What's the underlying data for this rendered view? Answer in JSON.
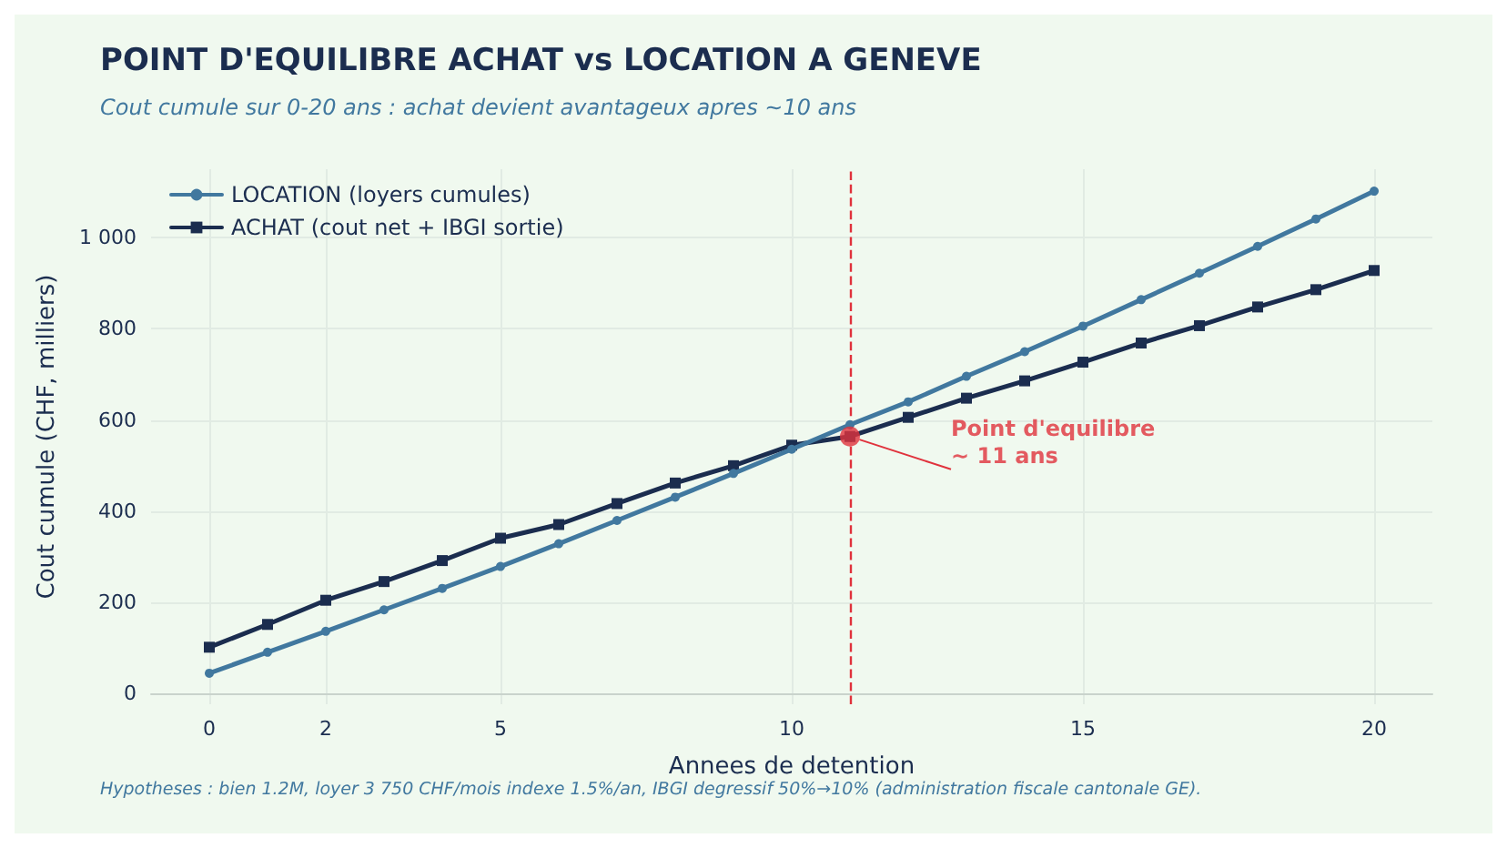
{
  "chart_data": {
    "type": "line",
    "title": "POINT D'EQUILIBRE ACHAT vs LOCATION A GENEVE",
    "subtitle": "Cout cumule sur 0-20 ans : achat devient avantageux apres ~10 ans",
    "xlabel": "Annees de detention",
    "ylabel": "Cout cumule (CHF, milliers)",
    "x": [
      0,
      1,
      2,
      3,
      4,
      5,
      6,
      7,
      8,
      9,
      10,
      11,
      12,
      13,
      14,
      15,
      16,
      17,
      18,
      19,
      20
    ],
    "series": [
      {
        "name": "LOCATION (loyers cumules)",
        "color": "#41789f",
        "marker": "circle",
        "values": [
          45,
          91,
          137,
          184,
          231,
          279,
          329,
          380,
          431,
          483,
          536,
          590,
          640,
          696,
          750,
          806,
          864,
          922,
          981,
          1041,
          1102
        ]
      },
      {
        "name": "ACHAT (cout net + IBGI sortie)",
        "color": "#1b2d4f",
        "marker": "square",
        "values": [
          102,
          152,
          205,
          246,
          292,
          341,
          371,
          417,
          462,
          500,
          545,
          564,
          606,
          648,
          686,
          727,
          769,
          807,
          848,
          886,
          928
        ]
      }
    ],
    "xlim": [
      -1,
      21
    ],
    "xticks": [
      0,
      2,
      5,
      10,
      15,
      20
    ],
    "ylim": [
      -23,
      1150
    ],
    "yticks": [
      0,
      200,
      400,
      600,
      800,
      {
        "value": 1000,
        "label": "1 000"
      }
    ],
    "ref_lines": [
      {
        "axis": "x",
        "value": 11,
        "label": null,
        "color": "#e0323c",
        "line_style": "dashed"
      }
    ],
    "annotations": [
      {
        "text": "Point d'equilibre\n~ 11 ans",
        "x": 11,
        "y": 564
      },
      "Hypotheses : bien 1.2M, loyer 3 750 CHF/mois indexe 1.5%/an, IBGI degressif 50%→10% (administration fiscale cantonale GE)."
    ],
    "grid": true,
    "legend": "top left",
    "line_style": "solid"
  }
}
